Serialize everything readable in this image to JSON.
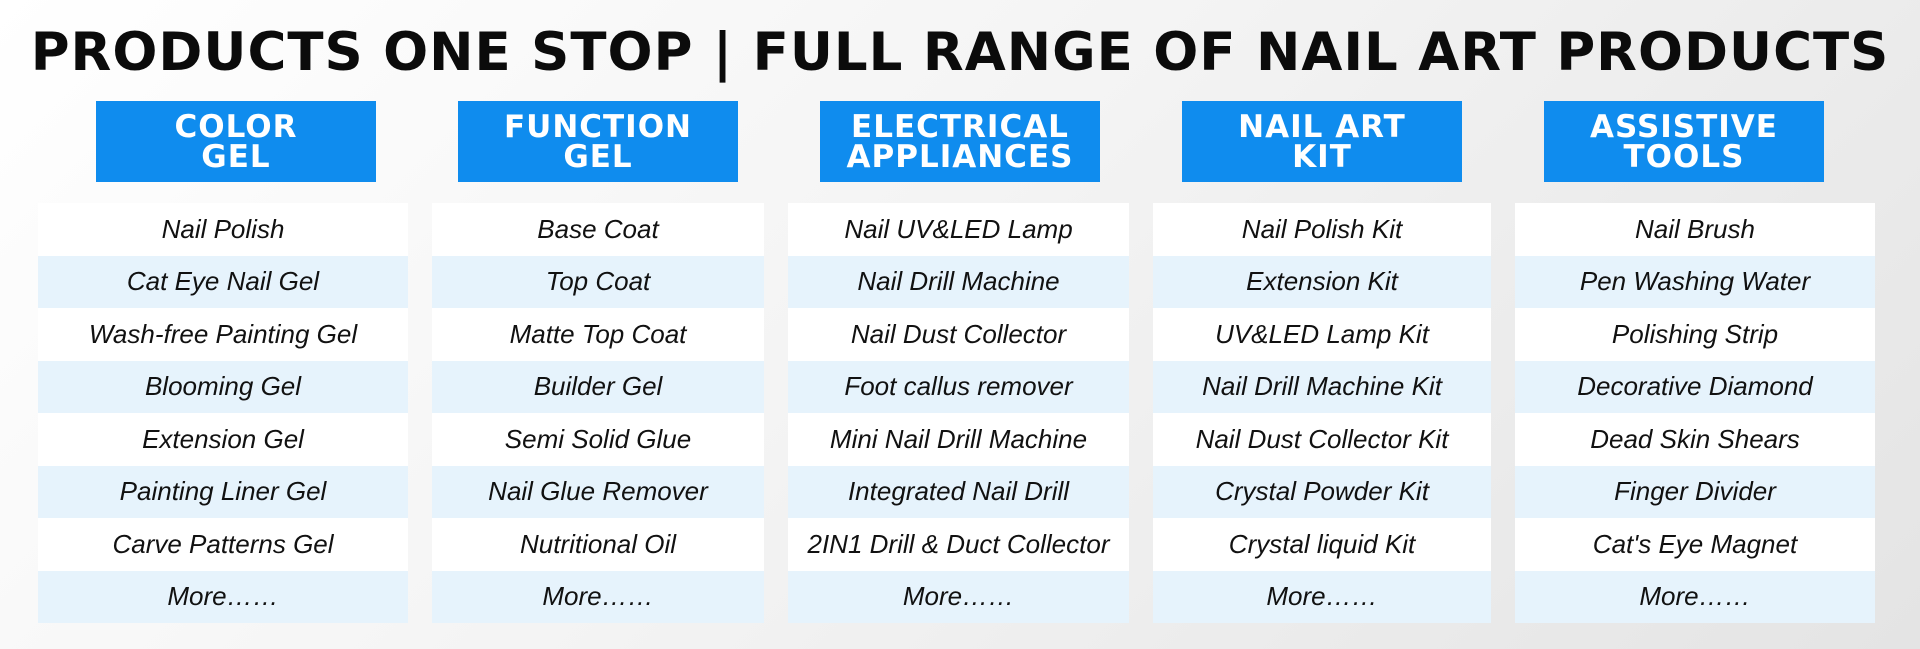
{
  "title": "PRODUCTS ONE STOP | FULL RANGE OF NAIL ART PRODUCTS",
  "colors": {
    "header_bg": "#0f8cee",
    "row_alt": "#e6f3fc",
    "row_base": "#ffffff"
  },
  "columns": [
    {
      "header_line1": "COLOR",
      "header_line2": "GEL",
      "items": [
        "Nail Polish",
        "Cat Eye Nail Gel",
        "Wash-free Painting Gel",
        "Blooming Gel",
        "Extension Gel",
        "Painting Liner Gel",
        "Carve Patterns Gel",
        "More……"
      ]
    },
    {
      "header_line1": "FUNCTION",
      "header_line2": "GEL",
      "items": [
        "Base Coat",
        "Top Coat",
        "Matte Top Coat",
        "Builder Gel",
        "Semi Solid Glue",
        "Nail Glue Remover",
        "Nutritional Oil",
        "More……"
      ]
    },
    {
      "header_line1": "ELECTRICAL",
      "header_line2": "APPLIANCES",
      "items": [
        "Nail UV&LED Lamp",
        "Nail Drill Machine",
        "Nail Dust Collector",
        "Foot callus remover",
        "Mini Nail Drill Machine",
        "Integrated Nail Drill",
        "2IN1 Drill & Duct Collector",
        "More……"
      ]
    },
    {
      "header_line1": "NAIL ART",
      "header_line2": "KIT",
      "items": [
        "Nail Polish Kit",
        "Extension Kit",
        "UV&LED Lamp Kit",
        "Nail Drill Machine Kit",
        "Nail Dust Collector Kit",
        "Crystal Powder Kit",
        "Crystal liquid Kit",
        "More……"
      ]
    },
    {
      "header_line1": "ASSISTIVE",
      "header_line2": "TOOLS",
      "items": [
        "Nail Brush",
        "Pen Washing Water",
        "Polishing Strip",
        "Decorative Diamond",
        "Dead Skin Shears",
        "Finger Divider",
        "Cat's Eye Magnet",
        "More……"
      ]
    }
  ]
}
